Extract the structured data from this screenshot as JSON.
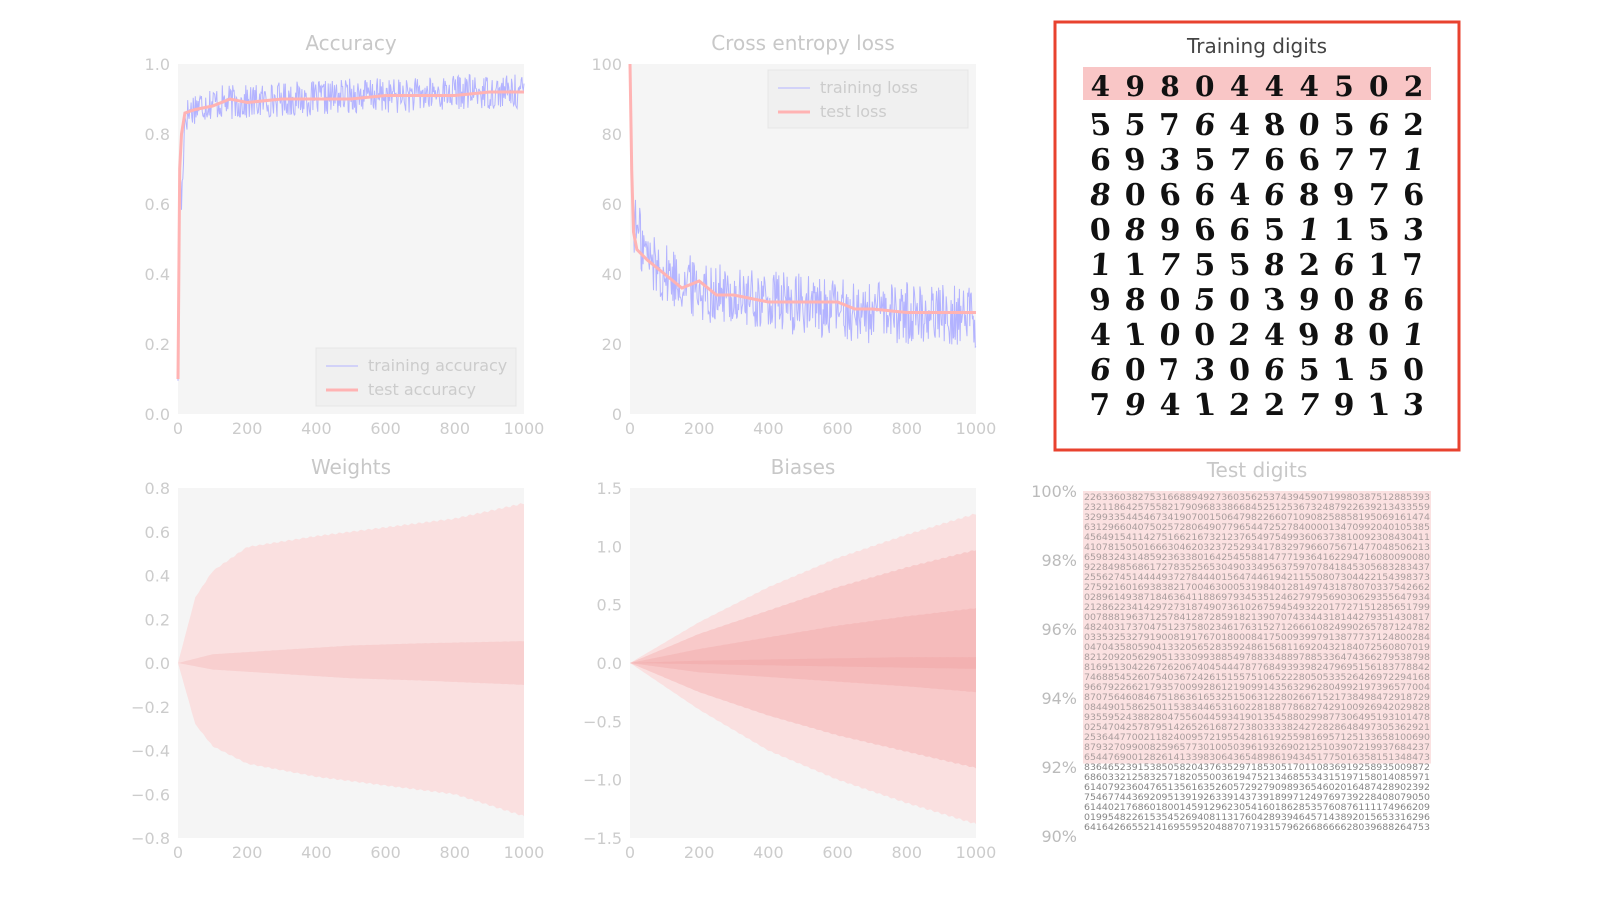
{
  "chart_data": [
    {
      "type": "line",
      "title": "Accuracy",
      "xlim": [
        0,
        1000
      ],
      "ylim": [
        0,
        1.0
      ],
      "x_ticks": [
        "0",
        "200",
        "400",
        "600",
        "800",
        "1000"
      ],
      "y_ticks": [
        "0.0",
        "0.2",
        "0.4",
        "0.6",
        "0.8",
        "1.0"
      ],
      "legend": {
        "placement": "bottom-right",
        "entries": [
          "training accuracy",
          "test accuracy"
        ]
      },
      "series": [
        {
          "name": "training accuracy",
          "color": "#b3b3ff",
          "x": [
            0,
            5,
            10,
            20,
            50,
            100,
            200,
            300,
            400,
            500,
            600,
            700,
            800,
            900,
            1000
          ],
          "values": [
            0.1,
            0.7,
            0.6,
            0.85,
            0.88,
            0.89,
            0.89,
            0.9,
            0.9,
            0.91,
            0.91,
            0.91,
            0.92,
            0.92,
            0.92
          ],
          "noise": 0.05
        },
        {
          "name": "test accuracy",
          "color": "#ffb3b3",
          "x": [
            0,
            5,
            10,
            20,
            50,
            100,
            150,
            200,
            300,
            400,
            500,
            600,
            700,
            800,
            900,
            1000
          ],
          "values": [
            0.1,
            0.7,
            0.8,
            0.86,
            0.87,
            0.88,
            0.9,
            0.89,
            0.9,
            0.9,
            0.9,
            0.91,
            0.91,
            0.91,
            0.92,
            0.92
          ]
        }
      ]
    },
    {
      "type": "line",
      "title": "Cross entropy loss",
      "xlim": [
        0,
        1000
      ],
      "ylim": [
        0,
        100
      ],
      "x_ticks": [
        "0",
        "200",
        "400",
        "600",
        "800",
        "1000"
      ],
      "y_ticks": [
        "0",
        "20",
        "40",
        "60",
        "80",
        "100"
      ],
      "legend": {
        "placement": "top-right",
        "entries": [
          "training loss",
          "test loss"
        ]
      },
      "series": [
        {
          "name": "training loss",
          "color": "#b3b3ff",
          "x": [
            0,
            10,
            50,
            100,
            200,
            300,
            400,
            500,
            600,
            700,
            800,
            900,
            1000
          ],
          "values": [
            100,
            55,
            45,
            40,
            36,
            33,
            32,
            31,
            30,
            29,
            29,
            29,
            28
          ],
          "noise": 9
        },
        {
          "name": "test loss",
          "color": "#ffb3b3",
          "x": [
            0,
            5,
            10,
            20,
            50,
            100,
            150,
            200,
            250,
            300,
            400,
            500,
            600,
            650,
            700,
            800,
            900,
            1000
          ],
          "values": [
            100,
            70,
            52,
            47,
            44,
            40,
            36,
            38,
            34,
            34,
            32,
            32,
            32,
            30,
            30,
            29,
            29,
            29
          ]
        }
      ]
    },
    {
      "type": "area",
      "title": "Weights",
      "xlim": [
        0,
        1000
      ],
      "ylim": [
        -0.8,
        0.8
      ],
      "x_ticks": [
        "0",
        "200",
        "400",
        "600",
        "800",
        "1000"
      ],
      "y_ticks": [
        "0.8",
        "0.6",
        "0.4",
        "0.2",
        "0.0",
        "−0.2",
        "−0.4",
        "−0.6",
        "−0.8"
      ],
      "series": [
        {
          "name": "",
          "color": "#fbd8d8",
          "x": [
            0,
            50,
            100,
            200,
            400,
            600,
            800,
            1000
          ],
          "upper": [
            0,
            0.3,
            0.42,
            0.53,
            0.58,
            0.62,
            0.66,
            0.73
          ],
          "lower": [
            0,
            -0.28,
            -0.38,
            -0.46,
            -0.52,
            -0.56,
            -0.6,
            -0.7
          ]
        },
        {
          "name": "",
          "color": "#f7c9c9",
          "x": [
            0,
            100,
            300,
            500,
            700,
            1000
          ],
          "upper": [
            0,
            0.04,
            0.06,
            0.08,
            0.09,
            0.1
          ],
          "lower": [
            0,
            -0.03,
            -0.05,
            -0.07,
            -0.08,
            -0.1
          ]
        }
      ]
    },
    {
      "type": "area",
      "title": "Biases",
      "xlim": [
        0,
        1000
      ],
      "ylim": [
        -1.5,
        1.5
      ],
      "x_ticks": [
        "0",
        "200",
        "400",
        "600",
        "800",
        "1000"
      ],
      "y_ticks": [
        "1.5",
        "1.0",
        "0.5",
        "0.0",
        "−0.5",
        "−1.0",
        "−1.5"
      ],
      "series": [
        {
          "name": "",
          "color": "#fbd8d8",
          "x": [
            0,
            200,
            400,
            600,
            800,
            1000
          ],
          "upper": [
            0,
            0.35,
            0.65,
            0.9,
            1.1,
            1.28
          ],
          "lower": [
            0,
            -0.4,
            -0.75,
            -1.0,
            -1.2,
            -1.38
          ]
        },
        {
          "name": "",
          "color": "#f7c2c2",
          "x": [
            0,
            200,
            400,
            600,
            800,
            1000
          ],
          "upper": [
            0,
            0.25,
            0.45,
            0.65,
            0.82,
            0.97
          ],
          "lower": [
            0,
            -0.25,
            -0.45,
            -0.62,
            -0.76,
            -0.9
          ]
        },
        {
          "name": "",
          "color": "#f4b6b6",
          "x": [
            0,
            200,
            400,
            600,
            800,
            1000
          ],
          "upper": [
            0,
            0.12,
            0.22,
            0.32,
            0.4,
            0.47
          ],
          "lower": [
            0,
            -0.08,
            -0.12,
            -0.16,
            -0.2,
            -0.25
          ]
        },
        {
          "name": "",
          "color": "#f1aeae",
          "x": [
            0,
            200,
            400,
            600,
            800,
            1000
          ],
          "upper": [
            0,
            0.02,
            0.03,
            0.04,
            0.05,
            0.05
          ],
          "lower": [
            0,
            -0.01,
            -0.02,
            -0.03,
            -0.04,
            -0.05
          ]
        }
      ]
    }
  ],
  "training_panel": {
    "title": "Training digits",
    "highlight_color": "#e8422f",
    "misclassified_row": [
      "4",
      "9",
      "8",
      "0",
      "4",
      "4",
      "4",
      "5",
      "0",
      "2"
    ],
    "rows": [
      [
        "5",
        "5",
        "7",
        "6",
        "4",
        "8",
        "0",
        "5",
        "6",
        "2"
      ],
      [
        "6",
        "9",
        "3",
        "5",
        "7",
        "6",
        "6",
        "7",
        "7",
        "1"
      ],
      [
        "8",
        "0",
        "6",
        "6",
        "4",
        "6",
        "8",
        "9",
        "7",
        "6"
      ],
      [
        "0",
        "8",
        "9",
        "6",
        "6",
        "5",
        "1",
        "1",
        "5",
        "3"
      ],
      [
        "1",
        "1",
        "7",
        "5",
        "5",
        "8",
        "2",
        "6",
        "1",
        "7"
      ],
      [
        "9",
        "8",
        "0",
        "5",
        "0",
        "3",
        "9",
        "0",
        "8",
        "6"
      ],
      [
        "4",
        "1",
        "0",
        "0",
        "2",
        "4",
        "9",
        "8",
        "0",
        "1"
      ],
      [
        "6",
        "0",
        "7",
        "3",
        "0",
        "6",
        "5",
        "1",
        "5",
        "0"
      ],
      [
        "7",
        "9",
        "4",
        "1",
        "2",
        "2",
        "7",
        "9",
        "1",
        "3"
      ]
    ]
  },
  "test_panel": {
    "title": "Test digits",
    "y_ticks": [
      "100%",
      "98%",
      "96%",
      "94%",
      "92%",
      "90%"
    ]
  }
}
